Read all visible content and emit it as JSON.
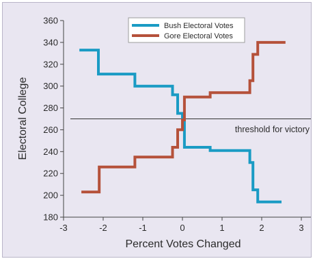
{
  "chart_data": {
    "type": "line",
    "title": "",
    "xlabel": "Percent Votes Changed",
    "ylabel": "Electoral College",
    "xlim": [
      -3,
      3
    ],
    "ylim": [
      180,
      360
    ],
    "x_ticks": [
      -3,
      -2,
      -1,
      0,
      1,
      2,
      3
    ],
    "y_ticks": [
      180,
      200,
      220,
      240,
      260,
      280,
      300,
      320,
      340,
      360
    ],
    "grid": false,
    "legend_position": "top-center",
    "series": [
      {
        "name": "Bush Electoral Votes",
        "color": "#1a9bc4",
        "line_shape": "step",
        "points": [
          [
            -2.6,
            333
          ],
          [
            -2.12,
            333
          ],
          [
            -2.12,
            311
          ],
          [
            -1.2,
            311
          ],
          [
            -1.2,
            300
          ],
          [
            -0.25,
            300
          ],
          [
            -0.25,
            292
          ],
          [
            -0.12,
            292
          ],
          [
            -0.12,
            275
          ],
          [
            0.0,
            275
          ],
          [
            0.0,
            269
          ],
          [
            0.05,
            269
          ],
          [
            0.05,
            244
          ],
          [
            0.7,
            244
          ],
          [
            0.7,
            241
          ],
          [
            1.7,
            241
          ],
          [
            1.7,
            230
          ],
          [
            1.78,
            230
          ],
          [
            1.78,
            205
          ],
          [
            1.9,
            205
          ],
          [
            1.9,
            194
          ],
          [
            2.5,
            194
          ]
        ]
      },
      {
        "name": "Gore Electoral Votes",
        "color": "#b5513a",
        "line_shape": "step",
        "points": [
          [
            -2.55,
            203
          ],
          [
            -2.1,
            203
          ],
          [
            -2.1,
            226
          ],
          [
            -1.2,
            226
          ],
          [
            -1.2,
            235
          ],
          [
            -0.25,
            235
          ],
          [
            -0.25,
            244
          ],
          [
            -0.12,
            244
          ],
          [
            -0.12,
            260
          ],
          [
            0.0,
            260
          ],
          [
            0.0,
            269
          ],
          [
            0.05,
            269
          ],
          [
            0.05,
            290
          ],
          [
            0.7,
            290
          ],
          [
            0.7,
            294
          ],
          [
            1.7,
            294
          ],
          [
            1.7,
            305
          ],
          [
            1.78,
            305
          ],
          [
            1.78,
            329
          ],
          [
            1.9,
            329
          ],
          [
            1.9,
            340
          ],
          [
            2.6,
            340
          ]
        ]
      }
    ],
    "threshold": {
      "value": 270,
      "label": "threshold for victory",
      "color": "#333333"
    }
  }
}
